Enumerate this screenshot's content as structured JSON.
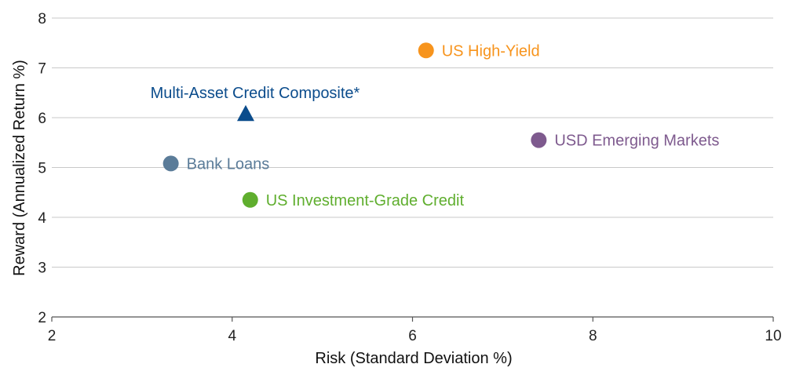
{
  "chart_data": {
    "type": "scatter",
    "title": "",
    "xlabel": "Risk (Standard Deviation %)",
    "ylabel": "Reward (Annualized Return %)",
    "xlim": [
      2,
      10
    ],
    "ylim": [
      2,
      8
    ],
    "xticks": [
      "2",
      "4",
      "6",
      "8",
      "10"
    ],
    "yticks": [
      "2",
      "3",
      "4",
      "5",
      "6",
      "7",
      "8"
    ],
    "grid": "horizontal",
    "legend": "none (direct labels)",
    "points": [
      {
        "label": "US High-Yield",
        "x": 6.15,
        "y": 7.35,
        "marker": "circle",
        "color": "#F7941D",
        "label_position": "right"
      },
      {
        "label": "Multi-Asset Credit Composite*",
        "x": 4.15,
        "y": 6.08,
        "marker": "triangle",
        "color": "#0B4C8C",
        "label_position": "above"
      },
      {
        "label": "USD Emerging Markets",
        "x": 7.4,
        "y": 5.55,
        "marker": "circle",
        "color": "#7E5A8E",
        "label_position": "right"
      },
      {
        "label": "Bank Loans",
        "x": 3.32,
        "y": 5.08,
        "marker": "circle",
        "color": "#5B7C99",
        "label_position": "right"
      },
      {
        "label": "US Investment-Grade Credit",
        "x": 4.2,
        "y": 4.35,
        "marker": "circle",
        "color": "#5FAE2E",
        "label_position": "right"
      }
    ]
  }
}
